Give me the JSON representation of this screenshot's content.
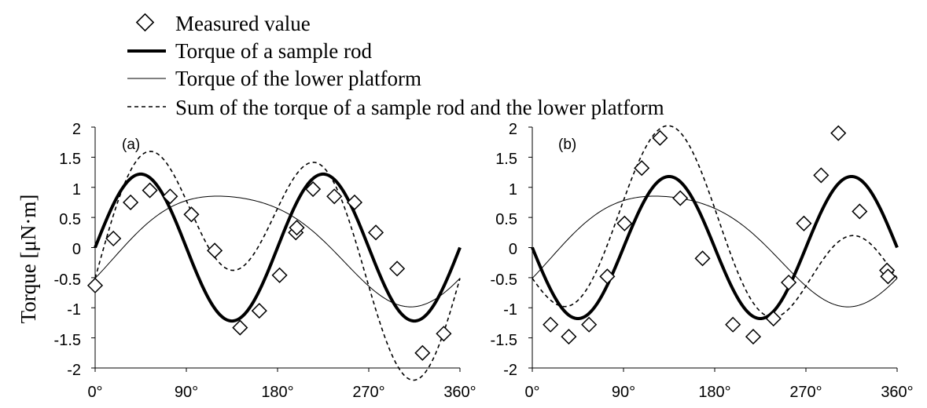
{
  "chart_data": {
    "type": "line",
    "ylabel": "Torque [μN·m]",
    "legend": {
      "placement": "top",
      "entries": [
        {
          "key": "measured",
          "label": "Measured value",
          "marker": "diamond"
        },
        {
          "key": "rod",
          "label": "Torque of a sample rod",
          "line": "thick"
        },
        {
          "key": "platform",
          "label": "Torque of the lower platform",
          "line": "thin"
        },
        {
          "key": "sum",
          "label": "Sum of the torque of a sample rod and the lower platform",
          "line": "dashed"
        }
      ]
    },
    "x_ticks": [
      "0°",
      "90°",
      "180°",
      "270°",
      "360°"
    ],
    "y_ticks": [
      "2",
      "1.5",
      "1",
      "0.5",
      "0",
      "-0.5",
      "-1",
      "-1.5",
      "-2"
    ],
    "xlim": [
      0,
      360
    ],
    "ylim": [
      -2,
      2
    ],
    "panels": [
      {
        "label": "(a)",
        "rod": {
          "amplitude": 1.22,
          "sign": 1
        },
        "platform": {
          "base": 0.07,
          "sine": 0.71,
          "cosine": -0.58,
          "harmonic2": 0.14
        },
        "measured": [
          {
            "x": 0,
            "y": -0.63
          },
          {
            "x": 18,
            "y": 0.15
          },
          {
            "x": 35,
            "y": 0.75
          },
          {
            "x": 54,
            "y": 0.95
          },
          {
            "x": 74,
            "y": 0.85
          },
          {
            "x": 95,
            "y": 0.55
          },
          {
            "x": 118,
            "y": -0.05
          },
          {
            "x": 143,
            "y": -1.33
          },
          {
            "x": 162,
            "y": -1.05
          },
          {
            "x": 182,
            "y": -0.46
          },
          {
            "x": 198,
            "y": 0.25
          },
          {
            "x": 199,
            "y": 0.33
          },
          {
            "x": 215,
            "y": 0.97
          },
          {
            "x": 236,
            "y": 0.85
          },
          {
            "x": 256,
            "y": 0.75
          },
          {
            "x": 277,
            "y": 0.25
          },
          {
            "x": 298,
            "y": -0.35
          },
          {
            "x": 323,
            "y": -1.75
          },
          {
            "x": 344,
            "y": -1.43
          }
        ]
      },
      {
        "label": "(b)",
        "rod": {
          "amplitude": 1.18,
          "sign": -1
        },
        "platform": {
          "base": 0.07,
          "sine": 0.71,
          "cosine": -0.58,
          "harmonic2": 0.14
        },
        "measured": [
          {
            "x": 18,
            "y": -1.28
          },
          {
            "x": 36,
            "y": -1.48
          },
          {
            "x": 56,
            "y": -1.28
          },
          {
            "x": 74,
            "y": -0.48
          },
          {
            "x": 91,
            "y": 0.4
          },
          {
            "x": 108,
            "y": 1.32
          },
          {
            "x": 126,
            "y": 1.82
          },
          {
            "x": 146,
            "y": 0.82
          },
          {
            "x": 168,
            "y": -0.18
          },
          {
            "x": 198,
            "y": -1.28
          },
          {
            "x": 218,
            "y": -1.48
          },
          {
            "x": 238,
            "y": -1.18
          },
          {
            "x": 253,
            "y": -0.58
          },
          {
            "x": 268,
            "y": 0.4
          },
          {
            "x": 285,
            "y": 1.2
          },
          {
            "x": 302,
            "y": 1.9
          },
          {
            "x": 323,
            "y": 0.6
          },
          {
            "x": 350,
            "y": -0.38
          },
          {
            "x": 351,
            "y": -0.48
          }
        ]
      }
    ]
  }
}
